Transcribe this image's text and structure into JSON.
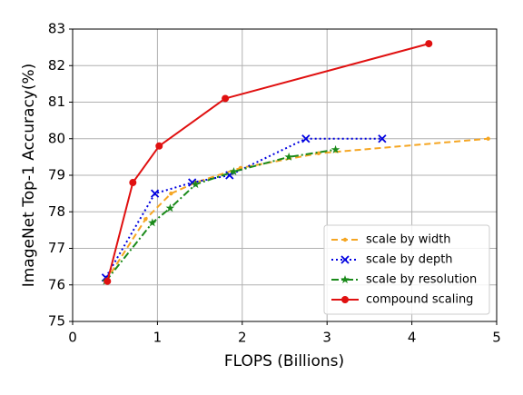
{
  "chart_data": {
    "type": "line",
    "xlabel": "FLOPS (Billions)",
    "ylabel": "ImageNet Top-1 Accuracy(%)",
    "xlim": [
      0,
      5
    ],
    "ylim": [
      75,
      83
    ],
    "xticks": [
      0,
      1,
      2,
      3,
      4,
      5
    ],
    "yticks": [
      75,
      76,
      77,
      78,
      79,
      80,
      81,
      82,
      83
    ],
    "grid": true,
    "legend": "lower right",
    "series": [
      {
        "name": "scale by width",
        "color": "#f5a623",
        "linestyle": "dashed",
        "marker": "dot",
        "x": [
          0.39,
          0.86,
          1.16,
          1.45,
          1.98,
          2.9,
          4.9
        ],
        "values": [
          76.1,
          77.8,
          78.5,
          78.8,
          79.2,
          79.6,
          80.0
        ]
      },
      {
        "name": "scale by depth",
        "color": "#0000e0",
        "linestyle": "dotted",
        "marker": "x",
        "x": [
          0.39,
          0.97,
          1.41,
          1.85,
          2.75,
          3.65
        ],
        "values": [
          76.2,
          78.5,
          78.8,
          79.0,
          80.0,
          80.0
        ]
      },
      {
        "name": "scale by resolution",
        "color": "#1a8a1a",
        "linestyle": "dashdot",
        "marker": "star",
        "x": [
          0.39,
          0.94,
          1.15,
          1.45,
          1.9,
          2.55,
          3.1
        ],
        "values": [
          76.1,
          77.7,
          78.1,
          78.75,
          79.1,
          79.5,
          79.7
        ]
      },
      {
        "name": "compound scaling",
        "color": "#e01010",
        "linestyle": "solid",
        "marker": "circle",
        "x": [
          0.41,
          0.71,
          1.02,
          1.8,
          4.2
        ],
        "values": [
          76.1,
          78.8,
          79.8,
          81.1,
          82.6
        ]
      }
    ]
  }
}
